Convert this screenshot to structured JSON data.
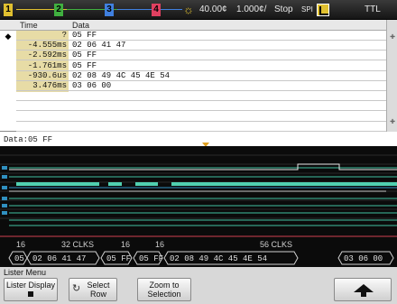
{
  "status_bar": {
    "channels": [
      {
        "num": "1",
        "color": "#e0c030"
      },
      {
        "num": "2",
        "color": "#40b040"
      },
      {
        "num": "3",
        "color": "#4080e0"
      },
      {
        "num": "4",
        "color": "#e04060"
      }
    ],
    "trigger_icon": "sun-trigger-icon",
    "timebase_offset": "40.00¢",
    "timebase_scale": "1.000¢/",
    "run_state": "Stop",
    "spi_label": "SPI",
    "logic_level": "TTL"
  },
  "lister": {
    "columns": [
      "Time",
      "Data"
    ],
    "selected_marker": "◆",
    "rows": [
      {
        "time": "?",
        "data": "05 FF"
      },
      {
        "time": "-4.555ms",
        "data": "02 06 41 47"
      },
      {
        "time": "-2.592ms",
        "data": "05 FF"
      },
      {
        "time": "-1.761ms",
        "data": "05 FF"
      },
      {
        "time": "-930.6us",
        "data": "02 08 49 4C 45 4E 54"
      },
      {
        "time": "3.476ms",
        "data": "03 06 00"
      },
      {
        "time": "",
        "data": ""
      },
      {
        "time": "",
        "data": ""
      },
      {
        "time": "",
        "data": ""
      },
      {
        "time": "",
        "data": ""
      }
    ]
  },
  "data_label": "Data:05 FF",
  "decode": {
    "clock_labels": [
      "16",
      "32 CLKS",
      "16",
      "16",
      "56 CLKS"
    ],
    "frames": [
      "05",
      "02 06 41 47",
      "05 FF",
      "05 FF",
      "02 08 49 4C 45 4E 54",
      "03 06 00"
    ]
  },
  "menu": {
    "title": "Lister Menu",
    "lister_display_label": "Lister Display",
    "select_row_label_1": "Select",
    "select_row_label_2": "Row",
    "zoom_label_1": "Zoom to",
    "zoom_label_2": "Selection",
    "back_icon": "up-arrow-icon"
  }
}
